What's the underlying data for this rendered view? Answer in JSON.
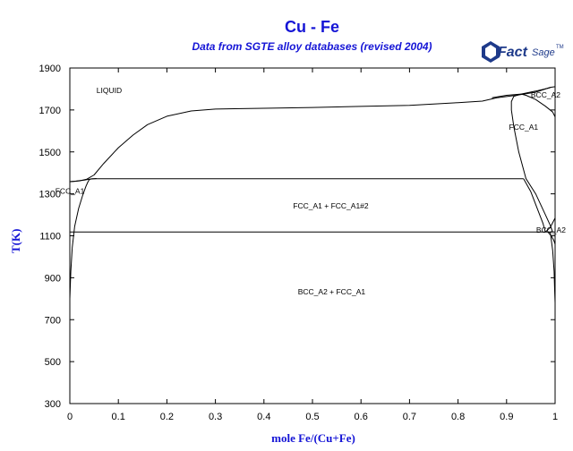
{
  "chart_data": {
    "type": "line",
    "title": "Cu - Fe",
    "subtitle": "Data from SGTE alloy databases (revised 2004)",
    "xlabel": "mole Fe/(Cu+Fe)",
    "ylabel": "T(K)",
    "xlim": [
      0,
      1
    ],
    "ylim": [
      300,
      1900
    ],
    "xticks": [
      "0",
      "0.1",
      "0.2",
      "0.3",
      "0.4",
      "0.5",
      "0.6",
      "0.7",
      "0.8",
      "0.9",
      "1"
    ],
    "yticks": [
      "300",
      "500",
      "700",
      "900",
      "1100",
      "1300",
      "1500",
      "1700",
      "1900"
    ],
    "grid": false,
    "series": [
      {
        "values": [
          [
            0.0,
            1358
          ],
          [
            0.02,
            1362
          ],
          [
            0.035,
            1370
          ],
          [
            0.05,
            1390
          ],
          [
            0.07,
            1445
          ],
          [
            0.1,
            1520
          ],
          [
            0.13,
            1580
          ],
          [
            0.16,
            1630
          ],
          [
            0.2,
            1670
          ],
          [
            0.25,
            1695
          ],
          [
            0.3,
            1704
          ],
          [
            0.4,
            1708
          ],
          [
            0.5,
            1712
          ],
          [
            0.6,
            1717
          ],
          [
            0.7,
            1722
          ],
          [
            0.8,
            1735
          ],
          [
            0.85,
            1742
          ],
          [
            0.88,
            1758
          ],
          [
            0.92,
            1770
          ],
          [
            0.96,
            1785
          ],
          [
            0.99,
            1808
          ],
          [
            1.0,
            1811
          ]
        ]
      },
      {
        "values": [
          [
            0.0,
            1358
          ],
          [
            0.01,
            1360
          ],
          [
            0.02,
            1363
          ],
          [
            0.03,
            1366
          ],
          [
            0.04,
            1370
          ],
          [
            0.055,
            1373
          ]
        ]
      },
      {
        "values": [
          [
            0.0,
            800
          ],
          [
            0.002,
            930
          ],
          [
            0.005,
            1045
          ],
          [
            0.01,
            1145
          ],
          [
            0.018,
            1230
          ],
          [
            0.026,
            1290
          ],
          [
            0.033,
            1335
          ],
          [
            0.037,
            1356
          ],
          [
            0.04,
            1368
          ],
          [
            0.045,
            1372
          ]
        ]
      },
      {
        "values": [
          [
            0.045,
            1372
          ],
          [
            0.935,
            1372
          ]
        ]
      },
      {
        "values": [
          [
            0.0,
            1118
          ],
          [
            1.0,
            1118
          ]
        ]
      },
      {
        "values": [
          [
            0.87,
            1758
          ],
          [
            0.9,
            1770
          ],
          [
            0.93,
            1776
          ],
          [
            0.96,
            1790
          ],
          [
            0.99,
            1806
          ]
        ]
      },
      {
        "values": [
          [
            0.93,
            1776
          ],
          [
            0.94,
            1770
          ],
          [
            0.96,
            1750
          ],
          [
            0.98,
            1718
          ],
          [
            0.995,
            1690
          ],
          [
            1.0,
            1667
          ]
        ]
      },
      {
        "values": [
          [
            0.93,
            1776
          ],
          [
            0.915,
            1765
          ],
          [
            0.91,
            1740
          ],
          [
            0.91,
            1700
          ],
          [
            0.915,
            1620
          ],
          [
            0.925,
            1500
          ],
          [
            0.94,
            1372
          ],
          [
            0.96,
            1300
          ],
          [
            0.98,
            1200
          ],
          [
            0.99,
            1150
          ],
          [
            0.995,
            1118
          ]
        ]
      },
      {
        "values": [
          [
            0.935,
            1372
          ],
          [
            0.95,
            1310
          ],
          [
            0.965,
            1220
          ],
          [
            0.975,
            1160
          ],
          [
            0.98,
            1118
          ]
        ]
      },
      {
        "values": [
          [
            0.98,
            1118
          ],
          [
            0.99,
            1140
          ],
          [
            1.0,
            1185
          ]
        ]
      },
      {
        "values": [
          [
            0.99,
            1118
          ],
          [
            0.995,
            1030
          ],
          [
            0.998,
            930
          ],
          [
            0.999,
            840
          ],
          [
            1.0,
            780
          ]
        ]
      },
      {
        "values": [
          [
            0.985,
            1118
          ],
          [
            0.992,
            1100
          ],
          [
            0.997,
            1080
          ],
          [
            1.0,
            1060
          ]
        ]
      }
    ],
    "annotations": [
      {
        "text": "LIQUID",
        "x": 0.055,
        "y": 1780
      },
      {
        "text": "FCC_A1",
        "x": 0.905,
        "y": 1605
      },
      {
        "text": "BCC_A2",
        "x": 0.95,
        "y": 1760
      },
      {
        "text": "FCC_A1",
        "x": -0.03,
        "y": 1300
      },
      {
        "text": "FCC_A1 + FCC_A1#2",
        "x": 0.46,
        "y": 1230
      },
      {
        "text": "BCC_A2",
        "x": 0.961,
        "y": 1115
      },
      {
        "text": "BCC_A2 + FCC_A1",
        "x": 0.47,
        "y": 820
      }
    ]
  },
  "logo": {
    "text": "FactSage",
    "trademark": "TM"
  }
}
